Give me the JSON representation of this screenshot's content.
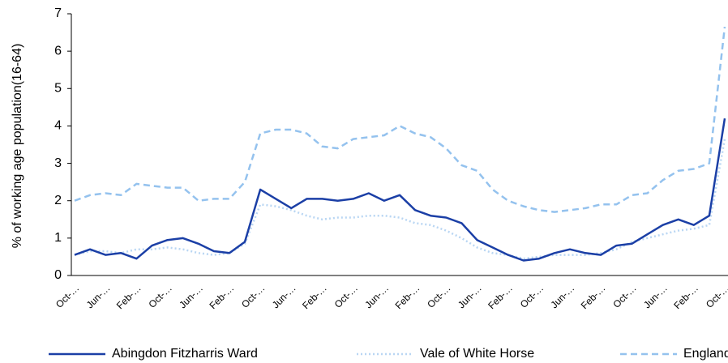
{
  "chart_data": {
    "type": "line",
    "y_label": "% of working age population(16-64)",
    "categories": [
      "Oct-…",
      null,
      "Jun-…",
      null,
      "Feb-…",
      null,
      "Oct-…",
      null,
      "Jun-…",
      null,
      "Feb-…",
      null,
      "Oct-…",
      null,
      "Jun-…",
      null,
      "Feb-…",
      null,
      "Oct-…",
      null,
      "Jun-…",
      null,
      "Feb-…",
      null,
      "Oct-…",
      null,
      "Jun-…",
      null,
      "Feb-…",
      null,
      "Oct-…",
      null,
      "Jun-…",
      null,
      "Feb-…",
      null,
      "Oct-…",
      null,
      "Jun-…",
      null,
      "Feb-…",
      null,
      "Oct-…"
    ],
    "series": [
      {
        "name": "Abingdon Fitzharris Ward",
        "color": "#1b3fa6",
        "style": "solid",
        "values": [
          0.55,
          0.7,
          0.55,
          0.6,
          0.45,
          0.8,
          0.95,
          1.0,
          0.85,
          0.65,
          0.6,
          0.9,
          2.3,
          2.05,
          1.8,
          2.05,
          2.05,
          2.0,
          2.05,
          2.2,
          2.0,
          2.15,
          1.75,
          1.6,
          1.55,
          1.4,
          0.95,
          0.75,
          0.55,
          0.4,
          0.45,
          0.6,
          0.7,
          0.6,
          0.55,
          0.8,
          0.85,
          1.1,
          1.35,
          1.5,
          1.35,
          1.6,
          4.2
        ]
      },
      {
        "name": "Vale of White Horse",
        "color": "#b9d6f3",
        "style": "dotted",
        "values": [
          0.55,
          0.65,
          0.65,
          0.6,
          0.7,
          0.7,
          0.75,
          0.7,
          0.6,
          0.55,
          0.6,
          0.85,
          1.9,
          1.85,
          1.75,
          1.6,
          1.5,
          1.55,
          1.55,
          1.6,
          1.6,
          1.55,
          1.4,
          1.35,
          1.2,
          1.0,
          0.75,
          0.6,
          0.55,
          0.45,
          0.5,
          0.55,
          0.55,
          0.55,
          0.6,
          0.7,
          0.9,
          1.0,
          1.1,
          1.2,
          1.25,
          1.35,
          3.65
        ]
      },
      {
        "name": "England",
        "color": "#94c2ee",
        "style": "dashed",
        "values": [
          2.0,
          2.15,
          2.2,
          2.15,
          2.45,
          2.4,
          2.35,
          2.35,
          2.0,
          2.05,
          2.05,
          2.5,
          3.8,
          3.9,
          3.9,
          3.8,
          3.45,
          3.4,
          3.65,
          3.7,
          3.75,
          4.0,
          3.8,
          3.7,
          3.4,
          2.95,
          2.8,
          2.3,
          2.0,
          1.85,
          1.75,
          1.7,
          1.75,
          1.8,
          1.9,
          1.9,
          2.15,
          2.2,
          2.55,
          2.8,
          2.85,
          3.0,
          6.65
        ]
      }
    ],
    "ylim": [
      0,
      7
    ],
    "yticks": [
      0,
      1,
      2,
      3,
      4,
      5,
      6,
      7
    ],
    "grid": false,
    "legend": "bottom"
  }
}
